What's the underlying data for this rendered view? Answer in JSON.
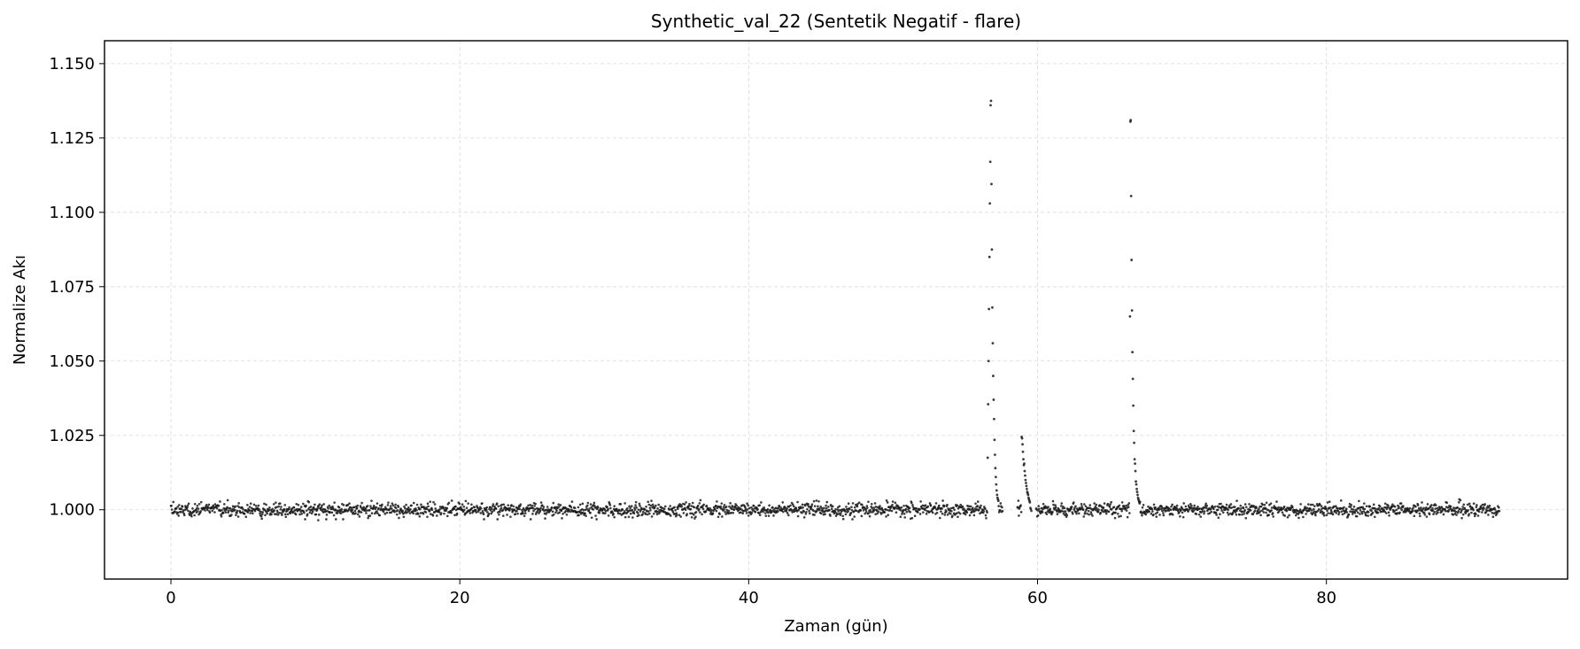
{
  "chart_data": {
    "type": "scatter",
    "title": "Synthetic_val_22 (Sentetik Negatif - flare)",
    "xlabel": "Zaman (gün)",
    "ylabel": "Normalize Akı",
    "xlim": [
      -4.6,
      96.7
    ],
    "ylim": [
      0.9767,
      1.1577
    ],
    "x_ticks": [
      0,
      20,
      40,
      60,
      80
    ],
    "x_tick_labels": [
      "0",
      "20",
      "40",
      "60",
      "80"
    ],
    "y_ticks": [
      1.0,
      1.025,
      1.05,
      1.075,
      1.1,
      1.125,
      1.15
    ],
    "y_tick_labels": [
      "1.000",
      "1.025",
      "1.050",
      "1.075",
      "1.100",
      "1.125",
      "1.150"
    ],
    "grid": true,
    "marker_color": "#1a1a1a",
    "baseline": {
      "x_start": 0.0,
      "x_end": 92.0,
      "cadence": 0.0333,
      "level": 1.0,
      "noise_std": 0.0011,
      "gaps": [
        [
          57.6,
          58.6
        ],
        [
          59.6,
          59.9
        ]
      ]
    },
    "flare_points": [
      {
        "x": 56.55,
        "y": 1.0175
      },
      {
        "x": 56.58,
        "y": 1.0355
      },
      {
        "x": 56.61,
        "y": 1.05
      },
      {
        "x": 56.64,
        "y": 1.0675
      },
      {
        "x": 56.67,
        "y": 1.085
      },
      {
        "x": 56.7,
        "y": 1.103
      },
      {
        "x": 56.73,
        "y": 1.117
      },
      {
        "x": 56.75,
        "y": 1.136
      },
      {
        "x": 56.78,
        "y": 1.1375
      },
      {
        "x": 56.81,
        "y": 1.1095
      },
      {
        "x": 56.84,
        "y": 1.0875
      },
      {
        "x": 56.87,
        "y": 1.068
      },
      {
        "x": 56.9,
        "y": 1.056
      },
      {
        "x": 56.93,
        "y": 1.045
      },
      {
        "x": 56.96,
        "y": 1.037
      },
      {
        "x": 56.99,
        "y": 1.0305
      },
      {
        "x": 57.02,
        "y": 1.0235
      },
      {
        "x": 57.05,
        "y": 1.0185
      },
      {
        "x": 57.08,
        "y": 1.014
      },
      {
        "x": 57.11,
        "y": 1.011
      },
      {
        "x": 57.14,
        "y": 1.0085
      },
      {
        "x": 57.17,
        "y": 1.0065
      },
      {
        "x": 57.2,
        "y": 1.005
      },
      {
        "x": 57.23,
        "y": 1.004
      },
      {
        "x": 57.26,
        "y": 1.0035
      },
      {
        "x": 57.29,
        "y": 1.003
      },
      {
        "x": 58.9,
        "y": 1.0245
      },
      {
        "x": 58.93,
        "y": 1.024
      },
      {
        "x": 58.96,
        "y": 1.022
      },
      {
        "x": 58.99,
        "y": 1.0195
      },
      {
        "x": 59.02,
        "y": 1.017
      },
      {
        "x": 59.05,
        "y": 1.015
      },
      {
        "x": 59.08,
        "y": 1.0155
      },
      {
        "x": 59.11,
        "y": 1.013
      },
      {
        "x": 59.14,
        "y": 1.0115
      },
      {
        "x": 59.17,
        "y": 1.01
      },
      {
        "x": 59.2,
        "y": 1.009
      },
      {
        "x": 59.23,
        "y": 1.008
      },
      {
        "x": 59.26,
        "y": 1.007
      },
      {
        "x": 59.29,
        "y": 1.006
      },
      {
        "x": 59.32,
        "y": 1.0055
      },
      {
        "x": 59.35,
        "y": 1.005
      },
      {
        "x": 59.38,
        "y": 1.004
      },
      {
        "x": 59.41,
        "y": 1.0035
      },
      {
        "x": 59.44,
        "y": 1.003
      },
      {
        "x": 59.47,
        "y": 1.0025
      },
      {
        "x": 66.4,
        "y": 1.065
      },
      {
        "x": 66.43,
        "y": 1.1305
      },
      {
        "x": 66.45,
        "y": 1.131
      },
      {
        "x": 66.48,
        "y": 1.1055
      },
      {
        "x": 66.51,
        "y": 1.084
      },
      {
        "x": 66.54,
        "y": 1.067
      },
      {
        "x": 66.57,
        "y": 1.053
      },
      {
        "x": 66.6,
        "y": 1.044
      },
      {
        "x": 66.63,
        "y": 1.035
      },
      {
        "x": 66.66,
        "y": 1.0265
      },
      {
        "x": 66.69,
        "y": 1.0225
      },
      {
        "x": 66.72,
        "y": 1.017
      },
      {
        "x": 66.75,
        "y": 1.0155
      },
      {
        "x": 66.78,
        "y": 1.013
      },
      {
        "x": 66.81,
        "y": 1.0095
      },
      {
        "x": 66.84,
        "y": 1.0085
      },
      {
        "x": 66.87,
        "y": 1.007
      },
      {
        "x": 66.9,
        "y": 1.006
      },
      {
        "x": 66.93,
        "y": 1.005
      },
      {
        "x": 66.96,
        "y": 1.004
      },
      {
        "x": 66.99,
        "y": 1.0035
      },
      {
        "x": 67.02,
        "y": 1.003
      },
      {
        "x": 67.05,
        "y": 1.0025
      }
    ],
    "outliers": [
      {
        "x": 10.2,
        "y": 0.9965
      },
      {
        "x": 30.7,
        "y": 0.9975
      },
      {
        "x": 73.8,
        "y": 1.003
      },
      {
        "x": 89.2,
        "y": 1.0035
      }
    ]
  }
}
